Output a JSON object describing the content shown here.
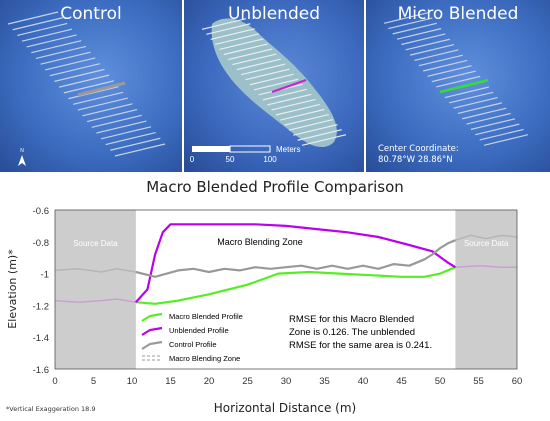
{
  "panels": [
    {
      "title": "Control"
    },
    {
      "title": "Unblended"
    },
    {
      "title": "Micro Blended"
    }
  ],
  "map": {
    "north_label": "N",
    "scale_ticks": [
      "0",
      "50",
      "100"
    ],
    "scale_unit": "Meters",
    "center_label": "Center Coordinate:",
    "center_value": "80.78°W   28.86°N",
    "profile_colors": {
      "control": "#9a9a9a",
      "unblended": "#cc22cc",
      "micro": "#33dd33"
    }
  },
  "footnote": "*Vertical Exaggeration 18.9",
  "chart_data": {
    "type": "line",
    "title": "Macro Blended Profile Comparison",
    "xlabel": "Horizontal Distance (m)",
    "ylabel": "Elevation (m)*",
    "xlim": [
      0,
      60
    ],
    "ylim": [
      -1.6,
      -0.6
    ],
    "xticks": [
      0,
      5,
      10,
      15,
      20,
      25,
      30,
      35,
      40,
      45,
      50,
      55,
      60
    ],
    "yticks": [
      -0.6,
      -0.8,
      -1,
      -1.2,
      -1.4,
      -1.6
    ],
    "ytick_labels": [
      "-0.6",
      "-0.8",
      "-1",
      "-1.2",
      "-1.4",
      "-1.6"
    ],
    "grid": false,
    "source_zones": [
      {
        "label": "Source Data",
        "x": [
          0,
          10.5
        ]
      },
      {
        "label": "Source Data",
        "x": [
          52,
          60
        ]
      }
    ],
    "zone_label": "Macro Blending Zone",
    "legend_position": "bottom-center",
    "series": [
      {
        "name": "Macro Blended Profile",
        "color": "#55ee22",
        "x": [
          10.5,
          13,
          16,
          20,
          25,
          29,
          33,
          37,
          41,
          45,
          48,
          50,
          52
        ],
        "y": [
          -1.18,
          -1.19,
          -1.17,
          -1.13,
          -1.07,
          -1.0,
          -0.99,
          -1.0,
          -1.01,
          -1.02,
          -1.02,
          -1.0,
          -0.96
        ]
      },
      {
        "name": "Unblended Profile",
        "color": "#bb00ee",
        "x": [
          10.5,
          12,
          13,
          14,
          15,
          18,
          22,
          26,
          30,
          34,
          38,
          42,
          46,
          49,
          51,
          52
        ],
        "y": [
          -1.18,
          -1.1,
          -0.88,
          -0.74,
          -0.69,
          -0.69,
          -0.69,
          -0.69,
          -0.7,
          -0.72,
          -0.74,
          -0.77,
          -0.82,
          -0.86,
          -0.93,
          -0.96
        ]
      },
      {
        "name": "Control Profile",
        "color": "#999999",
        "x": [
          10.5,
          13,
          16,
          18,
          20,
          22,
          24,
          26,
          28,
          30,
          32,
          34,
          36,
          38,
          40,
          42,
          44,
          46,
          48,
          49,
          50,
          51,
          52
        ],
        "y": [
          -0.99,
          -1.02,
          -0.98,
          -0.97,
          -0.99,
          -0.97,
          -0.98,
          -0.96,
          -0.97,
          -0.96,
          -0.95,
          -0.97,
          -0.95,
          -0.97,
          -0.95,
          -0.97,
          -0.94,
          -0.95,
          -0.91,
          -0.88,
          -0.84,
          -0.81,
          -0.79
        ]
      }
    ],
    "extended_series": [
      {
        "name": "Unblended source",
        "color": "#c9a0cf",
        "x": [
          0,
          3,
          6,
          8,
          10.5,
          52,
          55,
          58,
          60
        ],
        "y": [
          -1.17,
          -1.18,
          -1.17,
          -1.16,
          -1.18,
          -0.96,
          -0.95,
          -0.96,
          -0.96
        ]
      },
      {
        "name": "Control source",
        "color": "#b5b5b5",
        "x": [
          0,
          3,
          6,
          8,
          10.5,
          52,
          54,
          56,
          58,
          60
        ],
        "y": [
          -0.98,
          -0.97,
          -0.99,
          -0.97,
          -0.99,
          -0.79,
          -0.76,
          -0.78,
          -0.76,
          -0.77
        ]
      }
    ],
    "legend": [
      {
        "label": "Macro Blended Profile",
        "kind": "line",
        "color": "#55ee22"
      },
      {
        "label": "Unblended Profile",
        "kind": "line",
        "color": "#bb00ee"
      },
      {
        "label": "Control Profile",
        "kind": "line",
        "color": "#999999"
      },
      {
        "label": "Macro Blending Zone",
        "kind": "dashed",
        "color": "#999999"
      }
    ],
    "annotation": [
      "RMSE for this Macro Blended",
      "Zone is 0.126. The unblended",
      "RMSE for the same area is 0.241."
    ]
  }
}
